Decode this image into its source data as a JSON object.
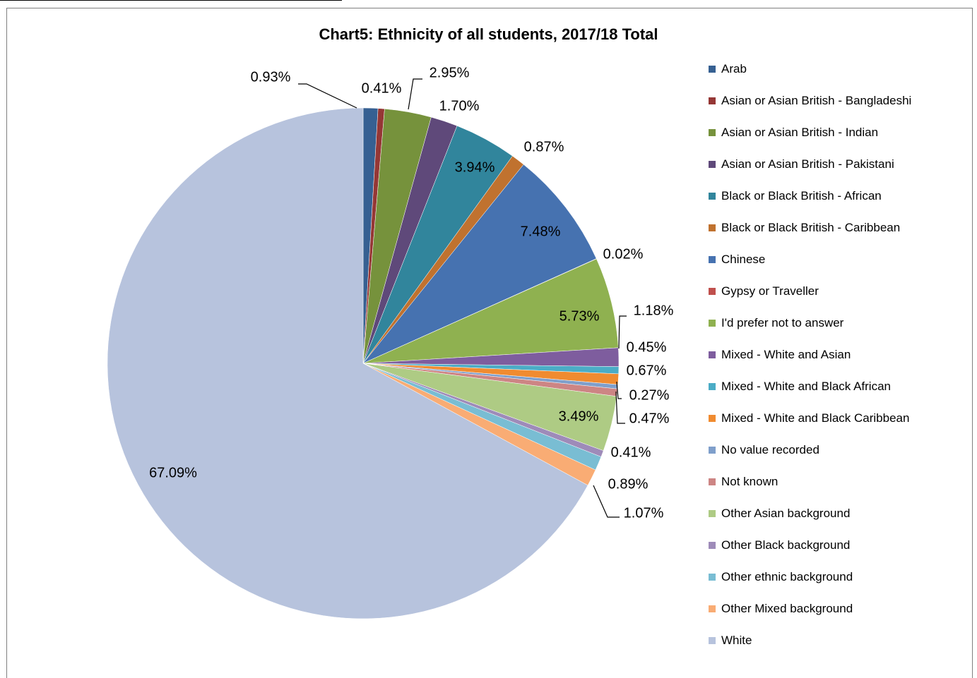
{
  "chart_data": {
    "type": "pie",
    "title": "Chart5: Ethnicity of all students, 2017/18 Total",
    "legend_position": "right",
    "start_angle_deg": 0,
    "direction": "clockwise",
    "slices": [
      {
        "name": "Arab",
        "value": 0.93,
        "label": "0.93%",
        "color": "#366092"
      },
      {
        "name": "Asian or Asian British - Bangladeshi",
        "value": 0.41,
        "label": "0.41%",
        "color": "#953735"
      },
      {
        "name": "Asian or Asian British - Indian",
        "value": 2.95,
        "label": "2.95%",
        "color": "#76923c"
      },
      {
        "name": "Asian or Asian British - Pakistani",
        "value": 1.7,
        "label": "1.70%",
        "color": "#5f497a"
      },
      {
        "name": "Black or Black British - African",
        "value": 3.94,
        "label": "3.94%",
        "color": "#31859c"
      },
      {
        "name": "Black or Black British - Caribbean",
        "value": 0.87,
        "label": "0.87%",
        "color": "#c0722f"
      },
      {
        "name": "Chinese",
        "value": 7.48,
        "label": "7.48%",
        "color": "#4672b0"
      },
      {
        "name": "Gypsy or Traveller",
        "value": 0.02,
        "label": "0.02%",
        "color": "#c0504d"
      },
      {
        "name": "I'd prefer not to answer",
        "value": 5.73,
        "label": "5.73%",
        "color": "#8fb150"
      },
      {
        "name": "Mixed - White and Asian",
        "value": 1.18,
        "label": "1.18%",
        "color": "#7e5d9e"
      },
      {
        "name": "Mixed - White and Black African",
        "value": 0.45,
        "label": "0.45%",
        "color": "#4bacc6"
      },
      {
        "name": "Mixed - White and Black Caribbean",
        "value": 0.67,
        "label": "0.67%",
        "color": "#f08b30"
      },
      {
        "name": "No value recorded",
        "value": 0.27,
        "label": "0.27%",
        "color": "#7f9fcb"
      },
      {
        "name": "Not known",
        "value": 0.47,
        "label": "0.47%",
        "color": "#cd8584"
      },
      {
        "name": "Other Asian background",
        "value": 3.49,
        "label": "3.49%",
        "color": "#aecb84"
      },
      {
        "name": "Other Black background",
        "value": 0.41,
        "label": "0.41%",
        "color": "#9e8bb9"
      },
      {
        "name": "Other ethnic background",
        "value": 0.89,
        "label": "0.89%",
        "color": "#79bdd3"
      },
      {
        "name": "Other Mixed background",
        "value": 1.07,
        "label": "1.07%",
        "color": "#f9ac74"
      },
      {
        "name": "White",
        "value": 67.09,
        "label": "67.09%",
        "color": "#b7c3dd"
      }
    ]
  }
}
